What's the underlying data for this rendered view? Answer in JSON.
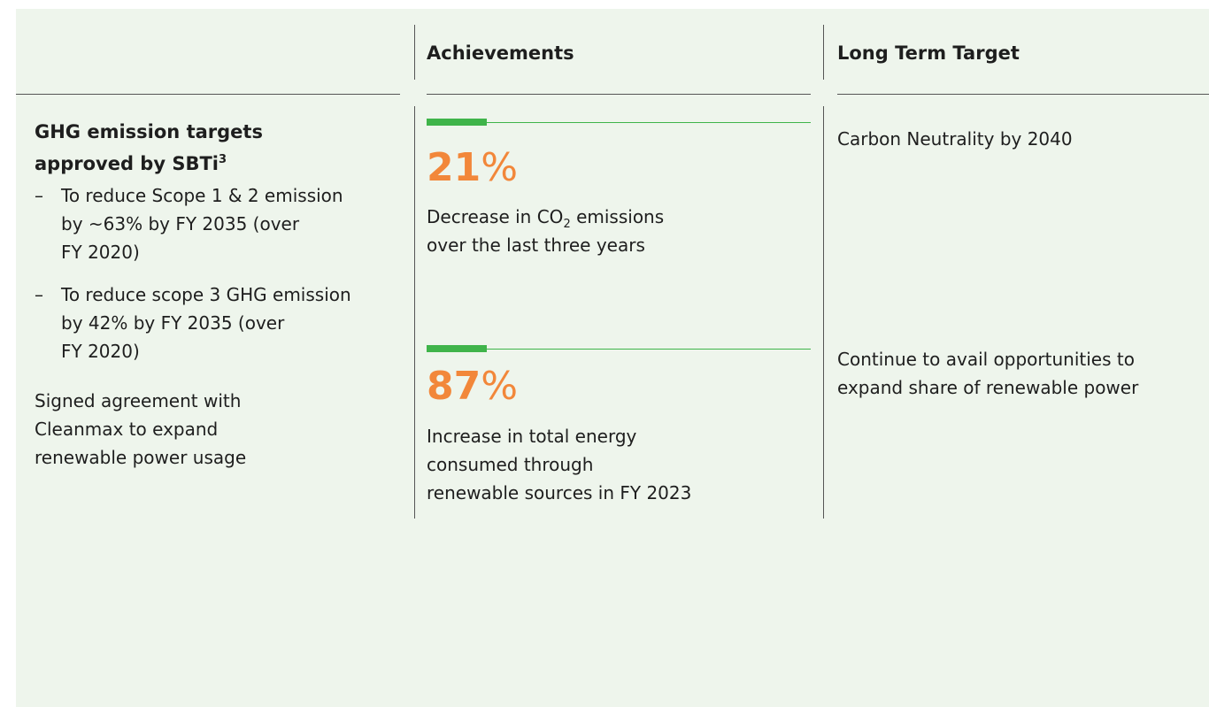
{
  "header": {
    "columns": [
      "Achievements",
      "Long Term Target"
    ]
  },
  "targets": {
    "title_lines": [
      "GHG emission targets",
      "approved by SBTi"
    ],
    "title_sup": "3",
    "bullet": "–",
    "bullets": [
      [
        "To reduce Scope 1 & 2 emission",
        "by ~63% by FY 2035 (over",
        "FY 2020)"
      ],
      [
        "To reduce scope 3 GHG emission",
        "by 42% by FY 2035 (over",
        "FY 2020)"
      ]
    ],
    "agreement": [
      "Signed agreement with",
      "Cleanmax to expand",
      "renewable power usage"
    ]
  },
  "achievements": [
    {
      "value": "21",
      "unit": "%",
      "first_line_before_sub": "Decrease in CO",
      "sub": "2",
      "first_line_after_sub": " emissions",
      "lines": [
        "over the last three years"
      ]
    },
    {
      "value": "87",
      "unit": "%",
      "lines": [
        "Increase in total energy",
        "consumed through",
        "renewable sources in FY 2023"
      ]
    }
  ],
  "long_term": [
    [
      "Carbon Neutrality by 2040"
    ],
    [
      "Continue to avail opportunities to",
      "expand share of renewable power"
    ]
  ]
}
